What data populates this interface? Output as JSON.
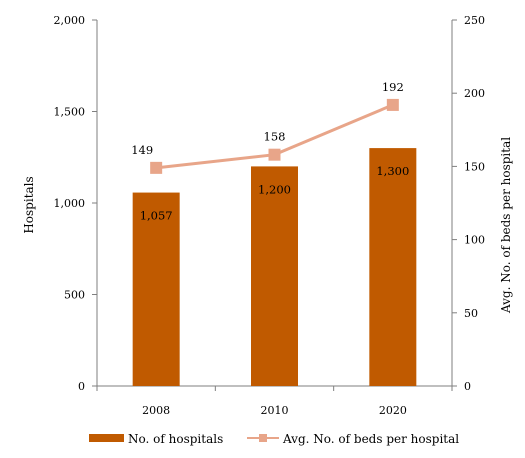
{
  "chart_data": {
    "type": "bar",
    "categories": [
      "2008",
      "2010",
      "2020"
    ],
    "series": [
      {
        "name": "No. of hospitals",
        "type": "bar",
        "axis": "left",
        "values": [
          1057,
          1200,
          1300
        ],
        "labels": [
          "1,057",
          "1,200",
          "1,300"
        ],
        "color": "#c05a00"
      },
      {
        "name": "Avg. No. of beds per hospital",
        "type": "line",
        "axis": "right",
        "values": [
          149,
          158,
          192
        ],
        "labels": [
          "149",
          "158",
          "192"
        ],
        "color": "#e8a589"
      }
    ],
    "ylabel": "Hospitals",
    "y2label": "Avg. No. of beds per hospital",
    "ylim": [
      0,
      2000
    ],
    "y2lim": [
      0,
      250
    ],
    "yticks": [
      "0",
      "500",
      "1,000",
      "1,500",
      "2,000"
    ],
    "y2ticks": [
      "0",
      "50",
      "100",
      "150",
      "200",
      "250"
    ],
    "grid": false,
    "legend": "bottom"
  }
}
